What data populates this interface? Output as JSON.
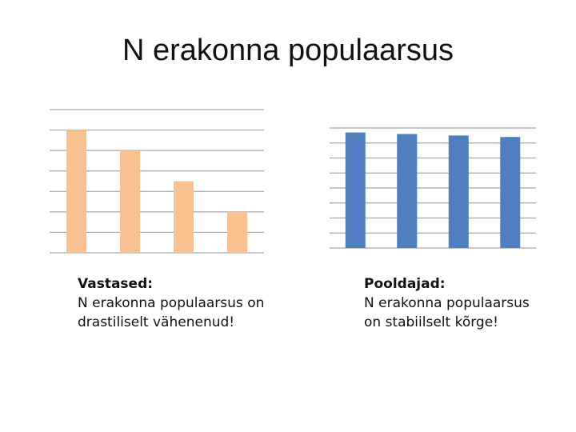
{
  "title": "N erakonna populaarsus",
  "chart_data": [
    {
      "type": "bar",
      "values": [
        6,
        5,
        3.5,
        2
      ],
      "color": "#f9c090",
      "ylim": [
        0,
        7
      ],
      "yticks": [
        0,
        1,
        2,
        3,
        4,
        5,
        6,
        7
      ],
      "grid": true,
      "caption": {
        "heading": "Vastased:",
        "lines": [
          "N erakonna populaarsus on",
          "drastiliselt vähenenud!"
        ]
      }
    },
    {
      "type": "bar",
      "values": [
        7.7,
        7.6,
        7.5,
        7.4
      ],
      "color": "#4f7fbf",
      "ylim": [
        0,
        8
      ],
      "yticks": [
        0,
        1,
        2,
        3,
        4,
        5,
        6,
        7,
        8
      ],
      "grid": true,
      "caption": {
        "heading": "Pooldajad:",
        "lines": [
          "N erakonna populaarsus",
          "on stabiilselt kõrge!"
        ]
      }
    }
  ]
}
